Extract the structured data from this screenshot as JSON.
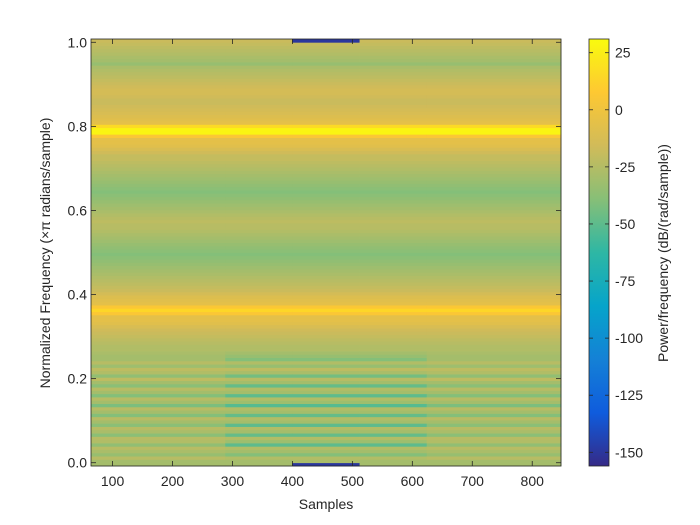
{
  "chart_data": {
    "type": "heatmap",
    "title": "",
    "xlabel": "Samples",
    "ylabel": "Normalized Frequency  (×π radians/sample)",
    "colorbar_label": "Power/frequency (dB/(rad/sample))",
    "xlim": [
      64,
      848
    ],
    "ylim": [
      -0.0078,
      1.0078
    ],
    "clim": [
      -156,
      31
    ],
    "x_ticks": [
      100,
      200,
      300,
      400,
      500,
      600,
      700,
      800
    ],
    "y_ticks": [
      0,
      0.2,
      0.4,
      0.6,
      0.8,
      1
    ],
    "y_tick_labels": [
      "0.0",
      "0.2",
      "0.4",
      "0.6",
      "0.8",
      "1.0"
    ],
    "colorbar_ticks": [
      25,
      0,
      -25,
      -50,
      -75,
      -100,
      -125,
      -150
    ],
    "colormap": [
      "#352a87",
      "#0f5cdd",
      "#1481d6",
      "#06a4ca",
      "#2eb7a4",
      "#87bf77",
      "#d1bb59",
      "#fec832",
      "#f9fb0e"
    ],
    "segments": [
      {
        "x0": 64,
        "x1": 288,
        "levels": [
          -30,
          -30,
          -24,
          -34,
          -28,
          -24,
          -36,
          -26,
          -24,
          -38,
          -28,
          -24,
          -38,
          -30,
          -24,
          -40,
          -30,
          -24,
          -42,
          -30,
          -24,
          -40,
          -30,
          -24,
          -38,
          -30,
          -22,
          -36,
          -26,
          -22,
          -32,
          -24,
          -30,
          -30,
          -28,
          -26,
          -26,
          -24,
          -22,
          -20,
          -18,
          -16,
          -12,
          -8,
          -6,
          -6,
          6,
          14,
          6,
          -6,
          -8,
          -10,
          -14,
          -18,
          -20,
          -22,
          -24,
          -26,
          -28,
          -30,
          -32,
          -34,
          -36,
          -38,
          -40,
          -38,
          -36,
          -34,
          -32,
          -30,
          -28,
          -26,
          -24,
          -24,
          -22,
          -24,
          -26,
          -28,
          -30,
          -32,
          -34,
          -36,
          -38,
          -40,
          -38,
          -36,
          -34,
          -32,
          -30,
          -28,
          -26,
          -24,
          -22,
          -20,
          -20,
          -16,
          -12,
          -8,
          -6,
          -6,
          6,
          28,
          28,
          16,
          -6,
          -8,
          -10,
          -12,
          -14,
          -16,
          -18,
          -18,
          -16,
          -14,
          -14,
          -16,
          -18,
          -20,
          -22,
          -24,
          -26,
          -28,
          -34,
          -30,
          -28,
          -26,
          -24,
          -22,
          -20,
          -18
        ]
      },
      {
        "x0": 288,
        "x1": 400,
        "levels": [
          -30,
          -30,
          -26,
          -40,
          -30,
          -26,
          -50,
          -32,
          -26,
          -48,
          -30,
          -26,
          -50,
          -30,
          -26,
          -48,
          -30,
          -26,
          -52,
          -32,
          -26,
          -50,
          -30,
          -26,
          -48,
          -30,
          -24,
          -44,
          -28,
          -22,
          -34,
          -26,
          -40,
          -34,
          -30,
          -26,
          -26,
          -24,
          -22,
          -20,
          -18,
          -16,
          -12,
          -8,
          -6,
          -6,
          6,
          14,
          6,
          -6,
          -8,
          -10,
          -14,
          -18,
          -20,
          -22,
          -24,
          -26,
          -28,
          -30,
          -32,
          -34,
          -36,
          -38,
          -40,
          -38,
          -36,
          -34,
          -32,
          -30,
          -28,
          -26,
          -24,
          -24,
          -22,
          -24,
          -26,
          -28,
          -30,
          -32,
          -34,
          -36,
          -38,
          -40,
          -38,
          -36,
          -34,
          -32,
          -30,
          -28,
          -26,
          -24,
          -22,
          -20,
          -20,
          -16,
          -12,
          -8,
          -6,
          -6,
          6,
          28,
          28,
          16,
          -6,
          -8,
          -10,
          -12,
          -14,
          -16,
          -18,
          -18,
          -16,
          -14,
          -14,
          -16,
          -18,
          -20,
          -22,
          -24,
          -26,
          -28,
          -34,
          -30,
          -28,
          -26,
          -24,
          -22,
          -20,
          -18
        ]
      },
      {
        "x0": 400,
        "x1": 512,
        "levels": [
          -150,
          -28,
          -26,
          -40,
          -30,
          -26,
          -50,
          -32,
          -26,
          -48,
          -30,
          -26,
          -50,
          -30,
          -26,
          -48,
          -30,
          -26,
          -52,
          -32,
          -26,
          -50,
          -30,
          -26,
          -48,
          -30,
          -24,
          -44,
          -28,
          -22,
          -34,
          -26,
          -40,
          -34,
          -30,
          -26,
          -26,
          -24,
          -22,
          -20,
          -18,
          -16,
          -12,
          -8,
          -6,
          -6,
          6,
          14,
          6,
          -6,
          -8,
          -10,
          -14,
          -18,
          -20,
          -22,
          -24,
          -26,
          -28,
          -30,
          -32,
          -34,
          -36,
          -38,
          -40,
          -38,
          -36,
          -34,
          -32,
          -30,
          -28,
          -26,
          -24,
          -24,
          -22,
          -24,
          -26,
          -28,
          -30,
          -32,
          -34,
          -36,
          -38,
          -40,
          -38,
          -36,
          -34,
          -32,
          -30,
          -28,
          -26,
          -24,
          -22,
          -20,
          -20,
          -16,
          -12,
          -8,
          -6,
          -6,
          6,
          28,
          28,
          16,
          -6,
          -8,
          -10,
          -12,
          -14,
          -16,
          -18,
          -18,
          -16,
          -14,
          -14,
          -16,
          -18,
          -20,
          -22,
          -24,
          -26,
          -28,
          -34,
          -30,
          -28,
          -26,
          -24,
          -22,
          -20,
          -150
        ]
      },
      {
        "x0": 512,
        "x1": 624,
        "levels": [
          -30,
          -30,
          -26,
          -40,
          -30,
          -26,
          -50,
          -32,
          -26,
          -48,
          -30,
          -26,
          -50,
          -30,
          -26,
          -48,
          -30,
          -26,
          -52,
          -32,
          -26,
          -50,
          -30,
          -26,
          -48,
          -30,
          -24,
          -44,
          -28,
          -22,
          -34,
          -26,
          -40,
          -34,
          -30,
          -26,
          -26,
          -24,
          -22,
          -20,
          -18,
          -16,
          -12,
          -8,
          -6,
          -6,
          6,
          14,
          6,
          -6,
          -8,
          -10,
          -14,
          -18,
          -20,
          -22,
          -24,
          -26,
          -28,
          -30,
          -32,
          -34,
          -36,
          -38,
          -40,
          -38,
          -36,
          -34,
          -32,
          -30,
          -28,
          -26,
          -24,
          -24,
          -22,
          -24,
          -26,
          -28,
          -30,
          -32,
          -34,
          -36,
          -38,
          -40,
          -38,
          -36,
          -34,
          -32,
          -30,
          -28,
          -26,
          -24,
          -22,
          -20,
          -20,
          -16,
          -12,
          -8,
          -6,
          -6,
          6,
          28,
          28,
          16,
          -6,
          -8,
          -10,
          -12,
          -14,
          -16,
          -18,
          -18,
          -16,
          -14,
          -14,
          -16,
          -18,
          -20,
          -22,
          -24,
          -26,
          -28,
          -34,
          -30,
          -28,
          -26,
          -24,
          -22,
          -20,
          -18
        ]
      },
      {
        "x0": 624,
        "x1": 848,
        "levels": [
          -30,
          -30,
          -24,
          -34,
          -28,
          -24,
          -36,
          -26,
          -24,
          -38,
          -28,
          -24,
          -38,
          -30,
          -24,
          -40,
          -30,
          -24,
          -42,
          -30,
          -24,
          -40,
          -30,
          -24,
          -38,
          -30,
          -22,
          -36,
          -26,
          -22,
          -32,
          -24,
          -30,
          -30,
          -28,
          -26,
          -26,
          -24,
          -22,
          -20,
          -18,
          -16,
          -12,
          -8,
          -6,
          -6,
          6,
          14,
          6,
          -6,
          -8,
          -10,
          -14,
          -18,
          -20,
          -22,
          -24,
          -26,
          -28,
          -30,
          -32,
          -34,
          -36,
          -38,
          -40,
          -38,
          -36,
          -34,
          -32,
          -30,
          -28,
          -26,
          -24,
          -24,
          -22,
          -24,
          -26,
          -28,
          -30,
          -32,
          -34,
          -36,
          -38,
          -40,
          -38,
          -36,
          -34,
          -32,
          -30,
          -28,
          -26,
          -24,
          -22,
          -20,
          -20,
          -16,
          -12,
          -8,
          -6,
          -6,
          6,
          28,
          28,
          16,
          -6,
          -8,
          -10,
          -12,
          -14,
          -16,
          -18,
          -18,
          -16,
          -14,
          -14,
          -16,
          -18,
          -20,
          -22,
          -24,
          -26,
          -28,
          -34,
          -30,
          -28,
          -26,
          -24,
          -22,
          -20,
          -18
        ]
      }
    ]
  }
}
